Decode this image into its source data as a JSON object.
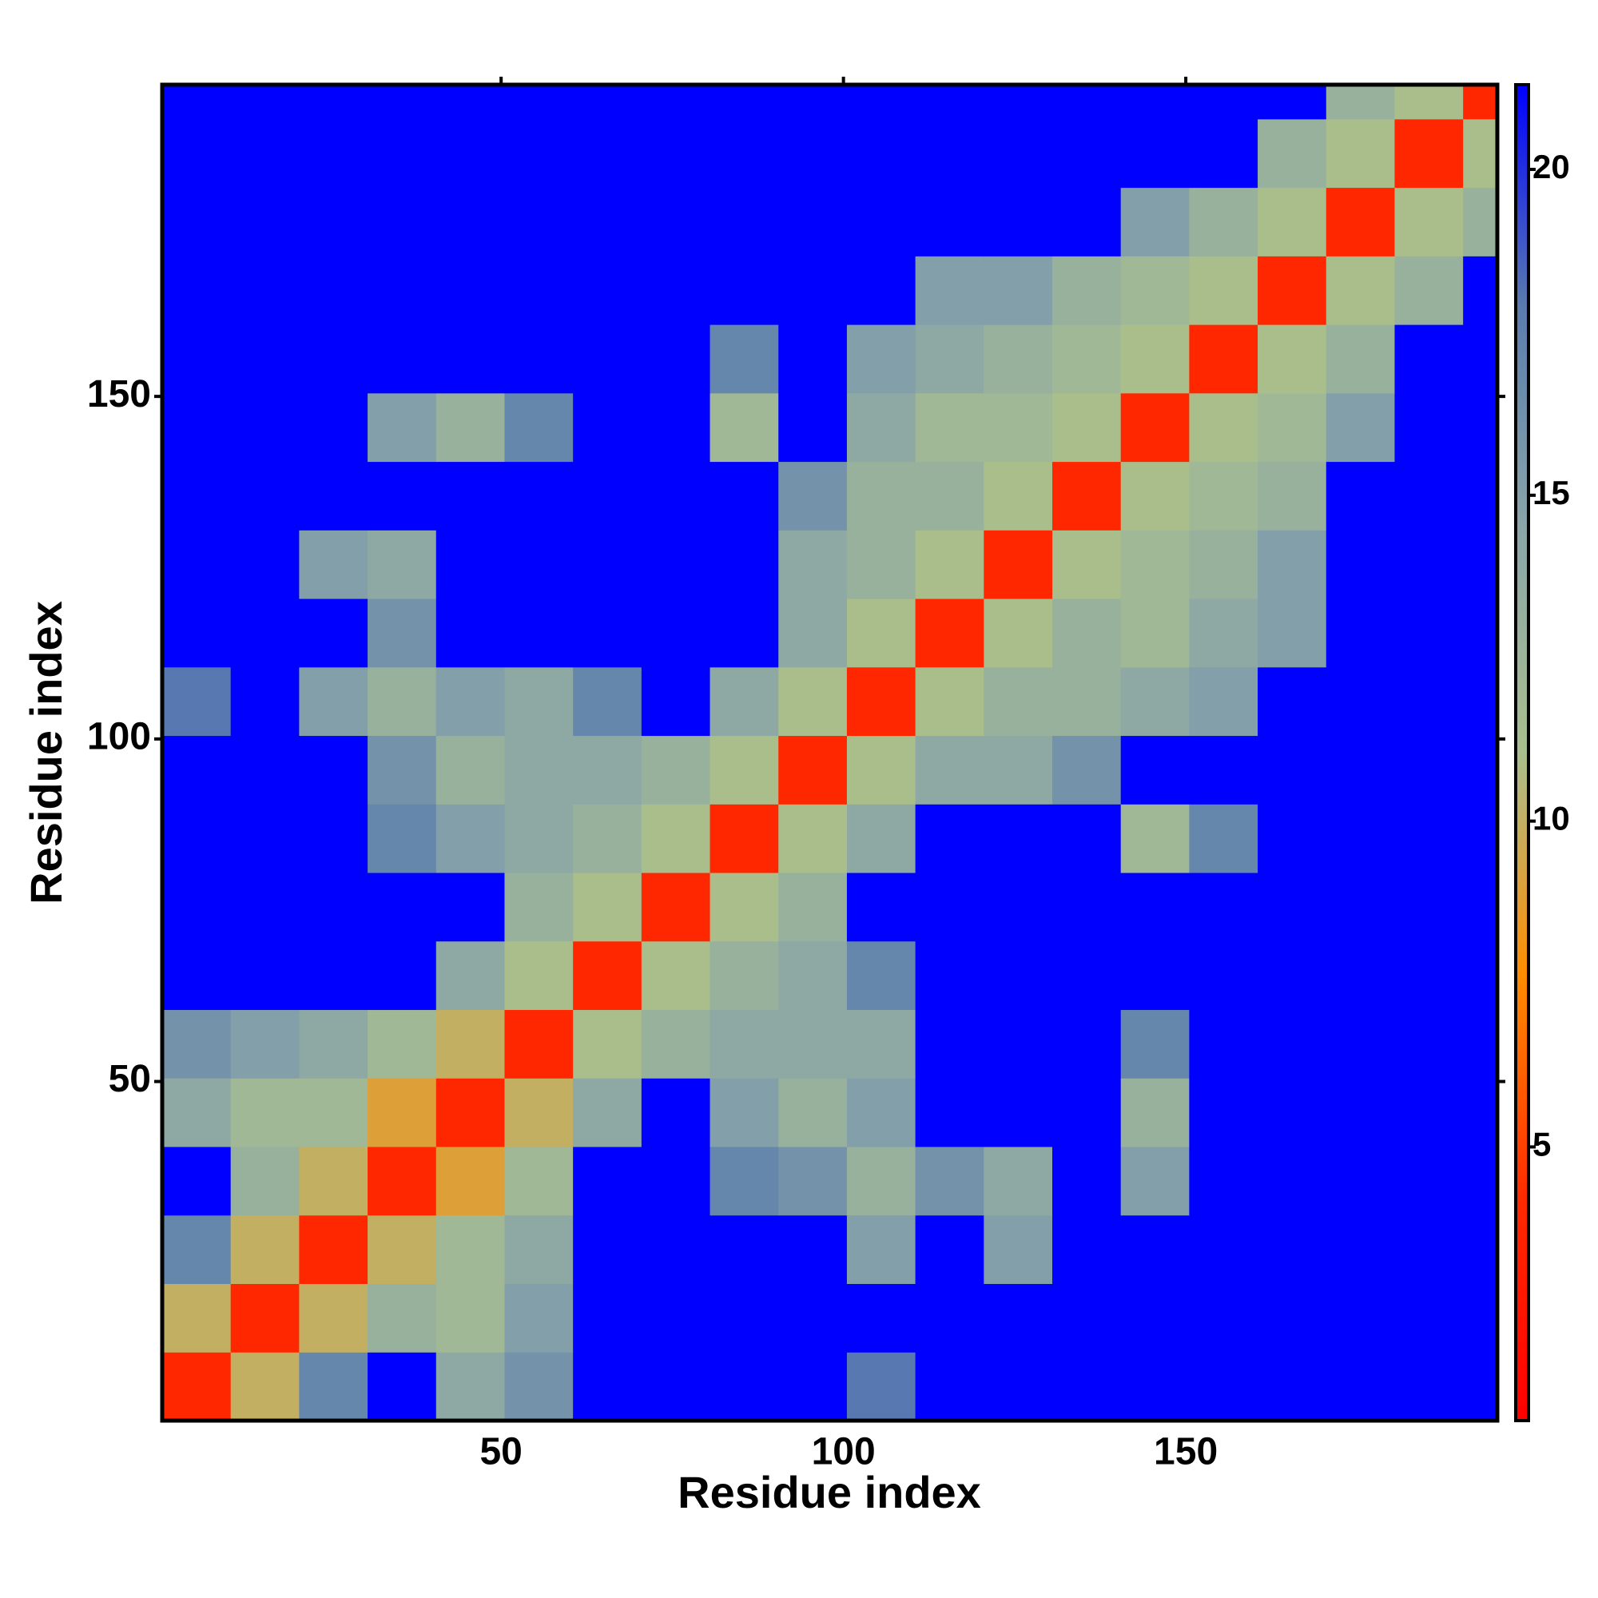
{
  "chart_data": {
    "type": "heatmap",
    "xlabel": "Residue index",
    "ylabel": "Residue index",
    "xbins": [
      0.5,
      10.5,
      20.5,
      30.5,
      40.5,
      50.5,
      60.5,
      70.5,
      80.5,
      90.5,
      100.5,
      110.5,
      120.5,
      130.5,
      140.5,
      150.5,
      160.5,
      170.5,
      180.5,
      190.5,
      195.5
    ],
    "ybins": [
      0.5,
      10.5,
      20.5,
      30.5,
      40.5,
      50.5,
      60.5,
      70.5,
      80.5,
      90.5,
      100.5,
      110.5,
      120.5,
      130.5,
      140.5,
      150.5,
      160.5,
      170.5,
      180.5,
      190.5,
      195.5
    ],
    "xlim": [
      0.5,
      195.5
    ],
    "ylim": [
      0.5,
      195.5
    ],
    "xticks": [
      50,
      100,
      150
    ],
    "yticks": [
      50,
      100,
      150
    ],
    "clim": [
      0.8,
      21.3
    ],
    "cticks": [
      5,
      10,
      15,
      20
    ],
    "colorscale": [
      "#ff0000",
      "#ff2a00",
      "#ff8c00",
      "#a9bf8e",
      "#8aa6a8",
      "#5a7cae",
      "#0000ff"
    ],
    "values": [
      [
        4,
        10,
        17,
        25,
        14,
        16,
        25,
        25,
        25,
        25,
        18,
        25,
        25,
        25,
        25,
        25,
        25,
        25,
        25,
        25
      ],
      [
        10,
        4,
        10,
        13,
        12,
        15,
        25,
        25,
        25,
        25,
        25,
        25,
        25,
        25,
        25,
        25,
        25,
        25,
        25,
        25
      ],
      [
        17,
        10,
        4,
        10,
        12,
        14,
        25,
        25,
        25,
        25,
        15,
        25,
        15,
        25,
        25,
        25,
        25,
        25,
        25,
        25
      ],
      [
        25,
        13,
        10,
        4,
        9,
        12,
        25,
        25,
        17,
        16,
        13,
        16,
        14,
        25,
        15,
        25,
        25,
        25,
        25,
        25
      ],
      [
        14,
        12,
        12,
        9,
        4,
        10,
        14,
        25,
        15,
        13,
        15,
        25,
        25,
        25,
        13,
        25,
        25,
        25,
        25,
        25
      ],
      [
        16,
        15,
        14,
        12,
        10,
        4,
        11,
        13,
        14,
        14,
        14,
        25,
        25,
        25,
        17,
        25,
        25,
        25,
        25,
        25
      ],
      [
        25,
        25,
        25,
        25,
        14,
        11,
        4,
        11,
        13,
        14,
        17,
        25,
        25,
        25,
        25,
        25,
        25,
        25,
        25,
        25
      ],
      [
        25,
        25,
        25,
        25,
        25,
        13,
        11,
        4,
        11,
        13,
        25,
        25,
        25,
        25,
        25,
        25,
        25,
        25,
        25,
        25
      ],
      [
        25,
        25,
        25,
        17,
        15,
        14,
        13,
        11,
        4,
        11,
        14,
        25,
        25,
        25,
        12,
        17,
        25,
        25,
        25,
        25
      ],
      [
        25,
        25,
        25,
        16,
        13,
        14,
        14,
        13,
        11,
        4,
        11,
        14,
        14,
        16,
        25,
        25,
        25,
        25,
        25,
        25
      ],
      [
        18,
        25,
        15,
        13,
        15,
        14,
        17,
        25,
        14,
        11,
        4,
        11,
        13,
        13,
        14,
        15,
        25,
        25,
        25,
        25
      ],
      [
        25,
        25,
        25,
        16,
        25,
        25,
        25,
        25,
        25,
        14,
        11,
        4,
        11,
        13,
        12,
        14,
        15,
        25,
        25,
        25
      ],
      [
        25,
        25,
        15,
        14,
        25,
        25,
        25,
        25,
        25,
        14,
        13,
        11,
        4,
        11,
        12,
        13,
        15,
        25,
        25,
        25
      ],
      [
        25,
        25,
        25,
        25,
        25,
        25,
        25,
        25,
        25,
        16,
        13,
        13,
        11,
        4,
        11,
        12,
        13,
        25,
        25,
        25
      ],
      [
        25,
        25,
        25,
        15,
        13,
        17,
        25,
        25,
        12,
        25,
        14,
        12,
        12,
        11,
        4,
        11,
        12,
        15,
        25,
        25
      ],
      [
        25,
        25,
        25,
        25,
        25,
        25,
        25,
        25,
        17,
        25,
        15,
        14,
        13,
        12,
        11,
        4,
        11,
        13,
        25,
        25
      ],
      [
        25,
        25,
        25,
        25,
        25,
        25,
        25,
        25,
        25,
        25,
        25,
        15,
        15,
        13,
        12,
        11,
        4,
        11,
        13,
        25
      ],
      [
        25,
        25,
        25,
        25,
        25,
        25,
        25,
        25,
        25,
        25,
        25,
        25,
        25,
        25,
        15,
        13,
        11,
        4,
        11,
        13
      ],
      [
        25,
        25,
        25,
        25,
        25,
        25,
        25,
        25,
        25,
        25,
        25,
        25,
        25,
        25,
        25,
        25,
        13,
        11,
        4,
        11
      ],
      [
        25,
        25,
        25,
        25,
        25,
        25,
        25,
        25,
        25,
        25,
        25,
        25,
        25,
        25,
        25,
        25,
        25,
        13,
        11,
        4
      ]
    ]
  }
}
